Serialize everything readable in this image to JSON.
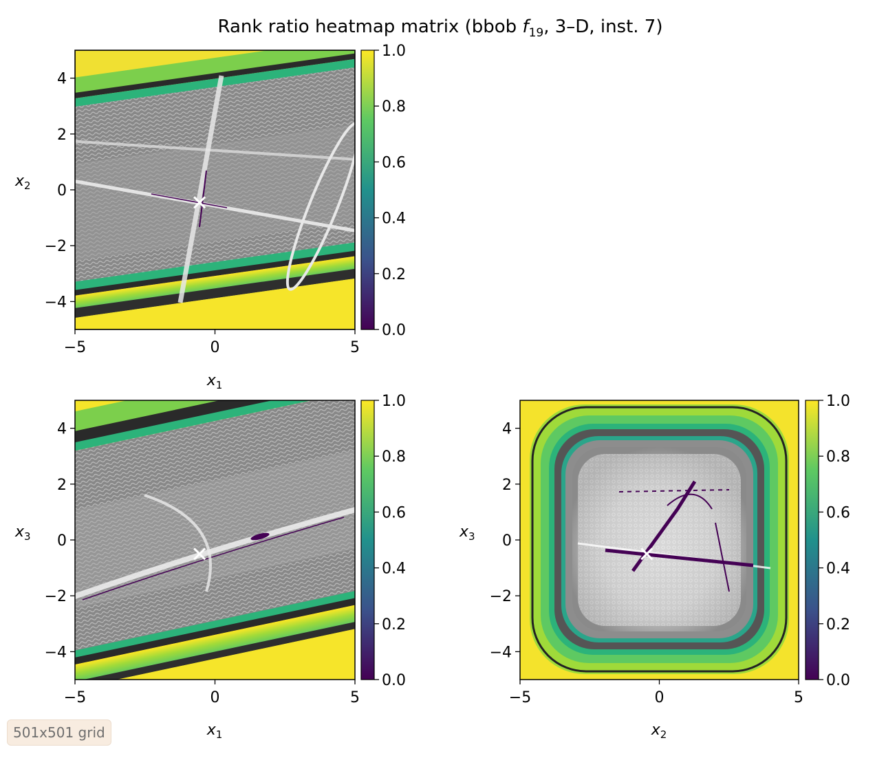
{
  "title": {
    "prefix": "Rank ratio heatmap matrix (bbob ",
    "fname": "f",
    "fsub": "19",
    "suffix": ", 3–D, inst. 7)"
  },
  "badge": "501x501 grid",
  "colors": {
    "marker": "#ffffff",
    "viridis": [
      "#440154",
      "#3b528b",
      "#21918c",
      "#5ec962",
      "#fde725"
    ],
    "below_threshold_gray": "#666666"
  },
  "chart_data": [
    {
      "type": "heatmap",
      "panel": "x1-x2",
      "x_var": "x",
      "x_sub": "1",
      "y_var": "x",
      "y_sub": "2",
      "xlim": [
        -5,
        5
      ],
      "ylim": [
        -5,
        5
      ],
      "xticks": [
        -5,
        0,
        5
      ],
      "yticks": [
        -4,
        -2,
        0,
        2,
        4
      ],
      "colorbar": {
        "range": [
          0,
          1
        ],
        "ticks": [
          0.0,
          0.2,
          0.4,
          0.6,
          0.8,
          1.0
        ]
      },
      "optimum": [
        -0.55,
        -0.45
      ]
    },
    {
      "type": "heatmap",
      "panel": "x1-x3",
      "x_var": "x",
      "x_sub": "1",
      "y_var": "x",
      "y_sub": "3",
      "xlim": [
        -5,
        5
      ],
      "ylim": [
        -5,
        5
      ],
      "xticks": [
        -5,
        0,
        5
      ],
      "yticks": [
        -4,
        -2,
        0,
        2,
        4
      ],
      "colorbar": {
        "range": [
          0,
          1
        ],
        "ticks": [
          0.0,
          0.2,
          0.4,
          0.6,
          0.8,
          1.0
        ]
      },
      "optimum": [
        -0.55,
        -0.5
      ]
    },
    {
      "type": "heatmap",
      "panel": "x2-x3",
      "x_var": "x",
      "x_sub": "2",
      "y_var": "x",
      "y_sub": "3",
      "xlim": [
        -5,
        5
      ],
      "ylim": [
        -5,
        5
      ],
      "xticks": [
        -5,
        0,
        5
      ],
      "yticks": [
        -4,
        -2,
        0,
        2,
        4
      ],
      "colorbar": {
        "range": [
          0,
          1
        ],
        "ticks": [
          0.0,
          0.2,
          0.4,
          0.6,
          0.8,
          1.0
        ]
      },
      "optimum": [
        -0.45,
        -0.5
      ]
    }
  ]
}
